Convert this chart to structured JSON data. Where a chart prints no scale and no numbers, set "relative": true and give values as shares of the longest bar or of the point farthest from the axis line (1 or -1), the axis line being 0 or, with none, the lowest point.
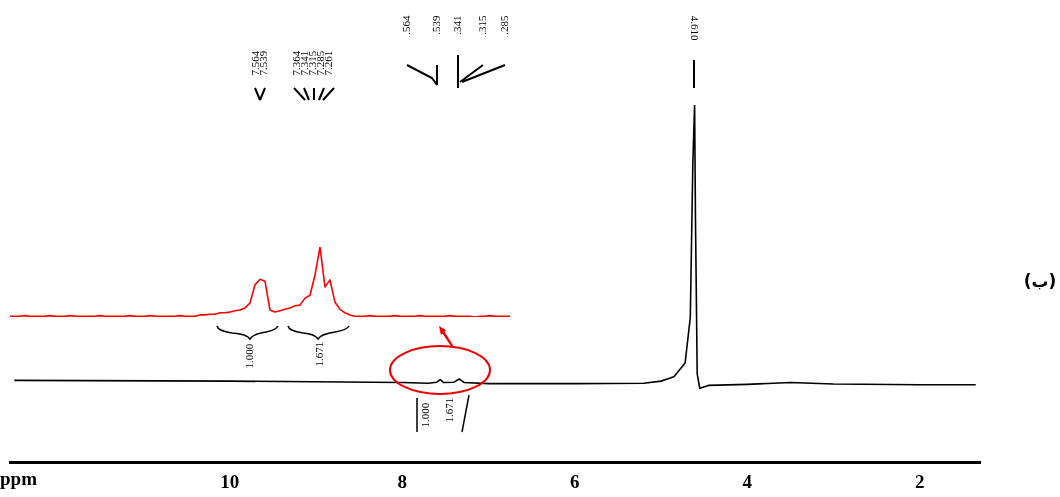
{
  "chart_data": [
    {
      "type": "line",
      "relative": true,
      "xlabel": "ppm",
      "xlim": [
        12.55,
        1.3
      ],
      "xticks": [
        10,
        8,
        6,
        4,
        2
      ],
      "tick_labels": "x",
      "grid": false,
      "legend": false,
      "marker": "none",
      "line_style": "solid",
      "series": [
        {
          "color": "#000000",
          "x": [
            12.5,
            10,
            8.0,
            7.7,
            7.6,
            7.56,
            7.52,
            7.4,
            7.34,
            7.28,
            7.0,
            6.0,
            5.2,
            5.0,
            4.85,
            4.72,
            4.66,
            4.63,
            4.61,
            4.6,
            4.58,
            4.55,
            4.45,
            4.0,
            3.5,
            3.0,
            2.0,
            1.35
          ],
          "values": [
            0.229,
            0.227,
            0.223,
            0.221,
            0.224,
            0.231,
            0.223,
            0.224,
            0.233,
            0.223,
            0.22,
            0.22,
            0.221,
            0.227,
            0.239,
            0.278,
            0.405,
            0.841,
            1.0,
            0.683,
            0.247,
            0.207,
            0.215,
            0.218,
            0.223,
            0.219,
            0.217,
            0.217
          ]
        }
      ],
      "annotations": [
        ".564",
        ".539",
        ".341",
        ".315",
        ".285",
        "4.610",
        "1.000",
        "1.671",
        "(ب)"
      ]
    },
    {
      "type": "line",
      "relative": true,
      "tick_labels": false,
      "grid": false,
      "legend": false,
      "marker": "none",
      "line_style": "solid",
      "categories": [
        null,
        null,
        null,
        null,
        null,
        null,
        null,
        null,
        null,
        null,
        null,
        null,
        null,
        null,
        null,
        null,
        null,
        null,
        null,
        null,
        null,
        null,
        null,
        null,
        null,
        null,
        null,
        null,
        null,
        null,
        null,
        null,
        null,
        null,
        null,
        null,
        null,
        null,
        null,
        null,
        null,
        null,
        null,
        null,
        null,
        null,
        null,
        null,
        null,
        null,
        null,
        null,
        null,
        null,
        null,
        null,
        null,
        null,
        null,
        null,
        null,
        null,
        null,
        null,
        null,
        null,
        null,
        null,
        null,
        null,
        null,
        null,
        null,
        null,
        null,
        null,
        null,
        null,
        null,
        null,
        null,
        null,
        null,
        null,
        null,
        null,
        null,
        null,
        null,
        null,
        null,
        null,
        null,
        null,
        null,
        null,
        null,
        null,
        null,
        null,
        null
      ],
      "series": [
        {
          "color": "#ff0000",
          "values": [
            0.01,
            0.01,
            0.01,
            0.02,
            0.01,
            0.01,
            0.01,
            0.01,
            0.02,
            0.01,
            0.01,
            0.01,
            0.02,
            0.01,
            0.01,
            0.01,
            0.01,
            0.01,
            0.02,
            0.01,
            0.01,
            0.01,
            0.01,
            0.01,
            0.02,
            0.01,
            0.01,
            0.01,
            0.02,
            0.01,
            0.01,
            0.01,
            0.01,
            0.01,
            0.02,
            0.01,
            0.01,
            0.01,
            0.03,
            0.03,
            0.04,
            0.04,
            0.06,
            0.06,
            0.07,
            0.09,
            0.1,
            0.13,
            0.2,
            0.46,
            0.54,
            0.51,
            0.1,
            0.07,
            0.09,
            0.11,
            0.13,
            0.16,
            0.17,
            0.27,
            0.31,
            0.6,
            1.0,
            0.43,
            0.53,
            0.21,
            0.11,
            0.06,
            0.03,
            0.01,
            0.01,
            0.01,
            0.02,
            0.01,
            0.01,
            0.01,
            0.01,
            0.02,
            0.01,
            0.01,
            0.01,
            0.01,
            0.02,
            0.01,
            0.01,
            0.01,
            0.01,
            0.01,
            0.02,
            0.01,
            0.01,
            0.01,
            0.01,
            0.0,
            0.01,
            0.01,
            0.02,
            0.01,
            0.01,
            0.01,
            0.01
          ]
        }
      ],
      "annotations": [
        "7.564",
        "7.539",
        "7.364",
        "7.341",
        "7.315",
        "7.285",
        "7.261",
        "1.000",
        "1.671"
      ]
    }
  ]
}
